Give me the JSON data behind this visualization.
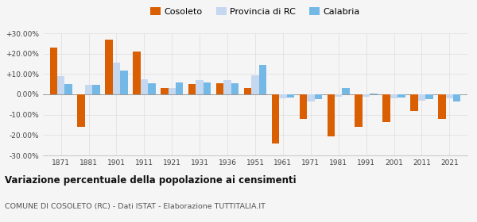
{
  "years": [
    1871,
    1881,
    1901,
    1911,
    1921,
    1931,
    1936,
    1951,
    1961,
    1971,
    1981,
    1991,
    2001,
    2011,
    2021
  ],
  "cosoleto": [
    23.0,
    -16.0,
    27.0,
    21.0,
    3.0,
    5.0,
    5.5,
    3.0,
    -24.0,
    -12.0,
    -20.5,
    -16.0,
    -13.5,
    -8.0,
    -12.0
  ],
  "provincia_rc": [
    9.0,
    4.5,
    15.5,
    7.5,
    3.0,
    7.0,
    7.0,
    9.5,
    -2.0,
    -3.5,
    -1.0,
    -1.0,
    -2.0,
    -3.0,
    -2.0
  ],
  "calabria": [
    5.0,
    4.5,
    11.5,
    5.5,
    6.0,
    6.0,
    5.5,
    14.5,
    -1.5,
    -2.5,
    3.0,
    0.5,
    -1.5,
    -2.5,
    -3.5
  ],
  "color_cosoleto": "#d95f02",
  "color_provincia": "#c5d8f0",
  "color_calabria": "#74b9e6",
  "ylim": [
    -30,
    30
  ],
  "yticks": [
    -30,
    -20,
    -10,
    0,
    10,
    20,
    30
  ],
  "ytick_labels": [
    "-30.00%",
    "-20.00%",
    "-10.00%",
    "0.00%",
    "+10.00%",
    "+20.00%",
    "+30.00%"
  ],
  "title": "Variazione percentuale della popolazione ai censimenti",
  "subtitle": "COMUNE DI COSOLETO (RC) - Dati ISTAT - Elaborazione TUTTITALIA.IT",
  "legend_labels": [
    "Cosoleto",
    "Provincia di RC",
    "Calabria"
  ],
  "bg_color": "#f5f5f5"
}
